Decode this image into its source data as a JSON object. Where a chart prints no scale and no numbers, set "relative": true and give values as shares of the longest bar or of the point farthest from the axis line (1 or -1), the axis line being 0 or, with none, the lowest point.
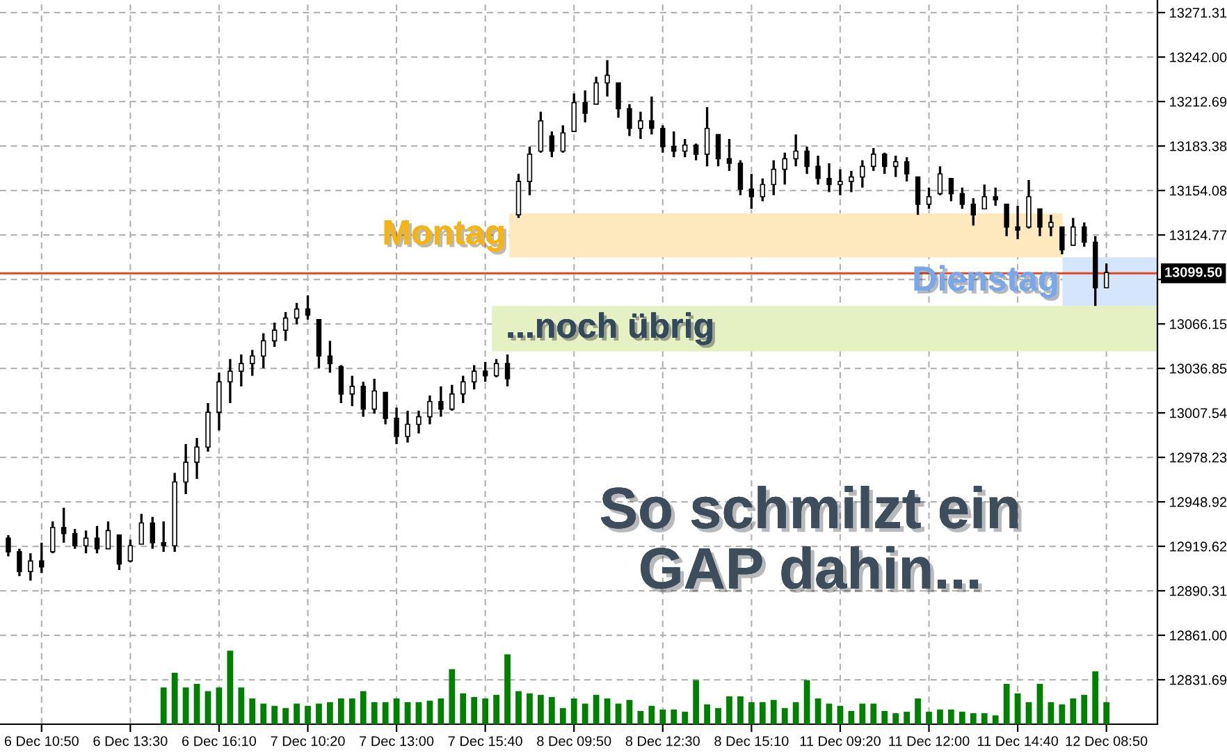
{
  "chart_data": [
    {
      "type": "candlestick",
      "categories": [
        null,
        null,
        null,
        "6 Dec 10:50",
        null,
        null,
        null,
        null,
        null,
        null,
        null,
        "6 Dec 13:30",
        null,
        null,
        null,
        null,
        null,
        null,
        null,
        "6 Dec 16:10",
        null,
        null,
        null,
        null,
        null,
        null,
        null,
        "7 Dec 10:20",
        null,
        null,
        null,
        null,
        null,
        null,
        null,
        "7 Dec 13:00",
        null,
        null,
        null,
        null,
        null,
        null,
        null,
        "7 Dec 15:40",
        null,
        null,
        null,
        null,
        null,
        null,
        null,
        "8 Dec 09:50",
        null,
        null,
        null,
        null,
        null,
        null,
        null,
        "8 Dec 12:30",
        null,
        null,
        null,
        null,
        null,
        null,
        null,
        "8 Dec 15:10",
        null,
        null,
        null,
        null,
        null,
        null,
        null,
        "11 Dec 09:20",
        null,
        null,
        null,
        null,
        null,
        null,
        null,
        "11 Dec 12:00",
        null,
        null,
        null,
        null,
        null,
        null,
        null,
        "11 Dec 14:40",
        null,
        null,
        null,
        null,
        null,
        null,
        null,
        "12 Dec 08:50"
      ],
      "ohlc": [
        [
          12925,
          12927,
          12913,
          12916
        ],
        [
          12916,
          12918,
          12900,
          12903
        ],
        [
          12903,
          12915,
          12897,
          12910
        ],
        [
          12910,
          12922,
          12902,
          12906
        ],
        [
          12916,
          12936,
          12915,
          12932
        ],
        [
          12932,
          12945,
          12922,
          12928
        ],
        [
          12928,
          12931,
          12918,
          12920
        ],
        [
          12920,
          12930,
          12915,
          12925
        ],
        [
          12925,
          12933,
          12915,
          12918
        ],
        [
          12918,
          12936,
          12918,
          12930
        ],
        [
          12927,
          12927,
          12904,
          12908
        ],
        [
          12910,
          12924,
          12909,
          12920
        ],
        [
          12921,
          12941,
          12921,
          12935
        ],
        [
          12935,
          12939,
          12918,
          12922
        ],
        [
          12922,
          12936,
          12916,
          12920
        ],
        [
          12920,
          12968,
          12916,
          12962
        ],
        [
          12962,
          12987,
          12954,
          12975
        ],
        [
          12975,
          12991,
          12964,
          12985
        ],
        [
          12985,
          13014,
          12982,
          13008
        ],
        [
          13008,
          13034,
          12996,
          13028
        ],
        [
          13028,
          13043,
          13014,
          13035
        ],
        [
          13035,
          13046,
          13025,
          13040
        ],
        [
          13040,
          13049,
          13032,
          13045
        ],
        [
          13045,
          13060,
          13037,
          13055
        ],
        [
          13055,
          13067,
          13051,
          13062
        ],
        [
          13062,
          13074,
          13055,
          13070
        ],
        [
          13070,
          13080,
          13066,
          13076
        ],
        [
          13076,
          13085,
          13069,
          13072
        ],
        [
          13069,
          13069,
          13037,
          13045
        ],
        [
          13045,
          13055,
          13034,
          13040
        ],
        [
          13038,
          13039,
          13014,
          13020
        ],
        [
          13020,
          13032,
          13012,
          13025
        ],
        [
          13025,
          13028,
          13005,
          13010
        ],
        [
          13010,
          13030,
          13007,
          13022
        ],
        [
          13021,
          13021,
          13000,
          13004
        ],
        [
          13004,
          13011,
          12987,
          12992
        ],
        [
          12992,
          13009,
          12988,
          13000
        ],
        [
          13000,
          13009,
          12994,
          13005
        ],
        [
          13005,
          13019,
          13000,
          13015
        ],
        [
          13015,
          13025,
          13005,
          13010
        ],
        [
          13010,
          13026,
          13009,
          13020
        ],
        [
          13020,
          13032,
          13014,
          13028
        ],
        [
          13028,
          13039,
          13023,
          13035
        ],
        [
          13035,
          13041,
          13028,
          13032
        ],
        [
          13032,
          13043,
          13031,
          13040
        ],
        [
          13040,
          13046,
          13025,
          13030
        ],
        [
          13138,
          13165,
          13136,
          13160
        ],
        [
          13160,
          13183,
          13151,
          13178
        ],
        [
          13180,
          13206,
          13179,
          13200
        ],
        [
          13190,
          13193,
          13176,
          13180
        ],
        [
          13180,
          13197,
          13179,
          13192
        ],
        [
          13193,
          13218,
          13193,
          13212
        ],
        [
          13212,
          13220,
          13199,
          13205
        ],
        [
          13211,
          13229,
          13211,
          13225
        ],
        [
          13225,
          13240,
          13216,
          13230
        ],
        [
          13225,
          13225,
          13202,
          13208
        ],
        [
          13208,
          13211,
          13190,
          13195
        ],
        [
          13195,
          13206,
          13188,
          13200
        ],
        [
          13200,
          13216,
          13191,
          13195
        ],
        [
          13195,
          13197,
          13179,
          13183
        ],
        [
          13183,
          13193,
          13176,
          13180
        ],
        [
          13180,
          13188,
          13176,
          13184
        ],
        [
          13184,
          13185,
          13174,
          13178
        ],
        [
          13178,
          13209,
          13170,
          13195
        ],
        [
          13191,
          13191,
          13170,
          13175
        ],
        [
          13175,
          13188,
          13167,
          13172
        ],
        [
          13172,
          13174,
          13151,
          13155
        ],
        [
          13155,
          13165,
          13142,
          13150
        ],
        [
          13150,
          13162,
          13147,
          13158
        ],
        [
          13158,
          13174,
          13151,
          13168
        ],
        [
          13168,
          13179,
          13158,
          13175
        ],
        [
          13175,
          13191,
          13170,
          13180
        ],
        [
          13180,
          13183,
          13165,
          13170
        ],
        [
          13170,
          13177,
          13158,
          13162
        ],
        [
          13162,
          13172,
          13153,
          13158
        ],
        [
          13158,
          13168,
          13151,
          13160
        ],
        [
          13160,
          13167,
          13153,
          13163
        ],
        [
          13163,
          13174,
          13156,
          13170
        ],
        [
          13170,
          13182,
          13167,
          13178
        ],
        [
          13178,
          13179,
          13165,
          13170
        ],
        [
          13170,
          13177,
          13163,
          13173
        ],
        [
          13173,
          13176,
          13160,
          13165
        ],
        [
          13163,
          13163,
          13138,
          13145
        ],
        [
          13145,
          13156,
          13142,
          13150
        ],
        [
          13152,
          13170,
          13151,
          13165
        ],
        [
          13162,
          13162,
          13147,
          13152
        ],
        [
          13152,
          13156,
          13142,
          13145
        ],
        [
          13145,
          13149,
          13131,
          13138
        ],
        [
          13142,
          13158,
          13142,
          13150
        ],
        [
          13150,
          13156,
          13144,
          13148
        ],
        [
          13145,
          13145,
          13124,
          13130
        ],
        [
          13130,
          13144,
          13122,
          13128
        ],
        [
          13130,
          13161,
          13129,
          13150
        ],
        [
          13142,
          13142,
          13124,
          13130
        ],
        [
          13130,
          13138,
          13124,
          13133
        ],
        [
          13130,
          13130,
          13112,
          13115
        ],
        [
          13118,
          13136,
          13118,
          13130
        ],
        [
          13130,
          13133,
          13117,
          13120
        ],
        [
          13120,
          13124,
          13078,
          13090
        ],
        [
          13090,
          13106,
          13090,
          13100
        ]
      ],
      "ylim": [
        12802.4,
        13279.6
      ],
      "yticks": [
        {
          "value": 13271.31,
          "label": "13271.31"
        },
        {
          "value": 13242.0,
          "label": "13242.00"
        },
        {
          "value": 13212.69,
          "label": "13212.69"
        },
        {
          "value": 13183.38,
          "label": "13183.38"
        },
        {
          "value": 13154.08,
          "label": "13154.08"
        },
        {
          "value": 13124.77,
          "label": "13124.77"
        },
        {
          "value": 13095.46,
          "label": null
        },
        {
          "value": 13066.15,
          "label": "13066.15"
        },
        {
          "value": 13036.85,
          "label": "13036.85"
        },
        {
          "value": 13007.54,
          "label": "13007.54"
        },
        {
          "value": 12978.23,
          "label": "12978.23"
        },
        {
          "value": 12948.92,
          "label": "12948.92"
        },
        {
          "value": 12919.62,
          "label": "12919.62"
        },
        {
          "value": 12890.31,
          "label": "12890.31"
        },
        {
          "value": 12861.0,
          "label": "12861.00"
        },
        {
          "value": 12831.69,
          "label": "12831.69"
        }
      ],
      "grid": true,
      "ref_lines": [
        {
          "axis": "y",
          "value": 13099.5,
          "label": "13099.50",
          "color": "#e04a1f"
        }
      ],
      "bands": [
        {
          "axis": "y",
          "from": 13110,
          "to": 13139,
          "label": "Montag",
          "color": "#fde9bd"
        },
        {
          "axis": "y",
          "from": 13078,
          "to": 13110,
          "label": "Dienstag",
          "color": "#d5e5fb"
        },
        {
          "axis": "y",
          "from": 13048,
          "to": 13078,
          "label": "...noch übrig",
          "color": "#e5f0c3"
        }
      ],
      "annotations": [
        "So schmilzt ein\nGAP dahin..."
      ]
    },
    {
      "type": "bar",
      "relative": true,
      "categories": [
        null,
        null,
        null,
        null,
        null,
        null,
        null,
        null,
        null,
        null,
        null,
        null,
        null,
        null,
        null,
        null,
        null,
        null,
        null,
        null,
        null,
        null,
        null,
        null,
        null,
        null,
        null,
        null,
        null,
        null,
        null,
        null,
        null,
        null,
        null,
        null,
        null,
        null,
        null,
        null,
        null,
        null,
        null,
        null,
        null,
        null,
        null,
        null,
        null,
        null,
        null,
        null,
        null,
        null,
        null,
        null,
        null,
        null,
        null,
        null,
        null,
        null,
        null,
        null,
        null,
        null,
        null,
        null,
        null,
        null,
        null,
        null,
        null,
        null,
        null,
        null,
        null,
        null,
        null,
        null,
        null,
        null,
        null,
        null,
        null,
        null,
        null,
        null,
        null,
        null,
        null,
        null,
        null,
        null,
        null,
        null,
        null,
        null,
        null,
        null
      ],
      "series": [
        {
          "color": "#008000",
          "values": [
            null,
            null,
            null,
            null,
            null,
            null,
            null,
            null,
            null,
            null,
            null,
            null,
            null,
            null,
            0.5,
            0.7,
            0.5,
            0.55,
            0.45,
            0.5,
            1,
            0.5,
            0.35,
            0.28,
            0.25,
            0.22,
            0.28,
            0.25,
            0.28,
            0.3,
            0.35,
            0.35,
            0.45,
            0.3,
            0.3,
            0.35,
            0.3,
            0.3,
            0.32,
            0.35,
            0.75,
            0.42,
            0.37,
            0.35,
            0.4,
            0.95,
            0.45,
            0.42,
            0.4,
            0.37,
            0.22,
            0.35,
            0.28,
            0.4,
            0.35,
            0.28,
            0.33,
            0.18,
            0.25,
            0.2,
            0.2,
            0.17,
            0.6,
            0.27,
            0.22,
            0.38,
            0.38,
            0.3,
            0.3,
            0.33,
            0.22,
            0.3,
            0.6,
            0.35,
            0.28,
            0.25,
            0.18,
            0.28,
            0.28,
            0.18,
            0.15,
            0.17,
            0.35,
            0.17,
            0.2,
            0.2,
            0.17,
            0.15,
            0.15,
            0.12,
            0.55,
            0.42,
            0.3,
            0.55,
            0.3,
            0.27,
            0.35,
            0.4,
            0.72,
            0.3
          ]
        }
      ]
    }
  ]
}
